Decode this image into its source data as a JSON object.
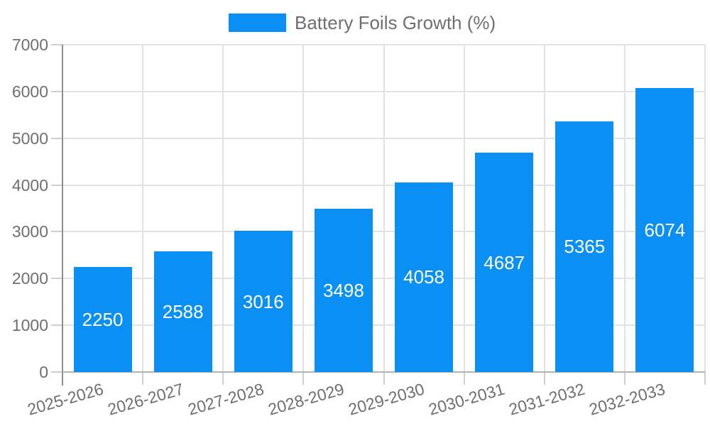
{
  "chart_data": {
    "type": "bar",
    "title": "Battery Foils Growth (%)",
    "series": [
      {
        "name": "Battery Foils Growth (%)",
        "values": [
          2250,
          2588,
          3016,
          3498,
          4058,
          4687,
          5365,
          6074
        ]
      }
    ],
    "categories": [
      "2025-2026",
      "2026-2027",
      "2027-2028",
      "2028-2029",
      "2029-2030",
      "2030-2031",
      "2031-2032",
      "2032-2033"
    ],
    "xlabel": "",
    "ylabel": "",
    "ylim": [
      0,
      7000
    ],
    "yticks": [
      0,
      1000,
      2000,
      3000,
      4000,
      5000,
      6000,
      7000
    ],
    "grid": true,
    "legend_position": "top",
    "bar_color": "#0a90f4",
    "value_label_color": "#ffffff",
    "axis_text_color": "#6f6f6f",
    "grid_color": "#e2e2e2",
    "tick_color": "#cfcfcf",
    "axis_line_color": "#8e8e8e",
    "baseline_color": "#b3b3b3",
    "background_color": "#ffffff"
  }
}
